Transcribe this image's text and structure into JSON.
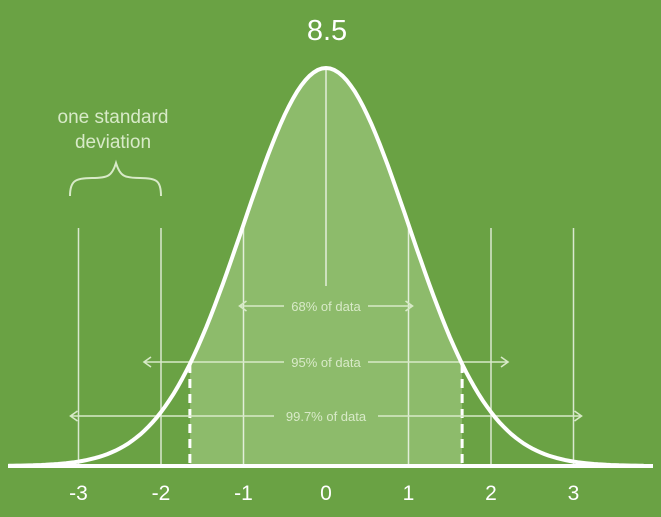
{
  "diagram": {
    "peak_label": "8.5",
    "annotation": {
      "line1": "one standard",
      "line2": "deviation"
    },
    "ticks": [
      "-3",
      "-2",
      "-1",
      "0",
      "1",
      "2",
      "3"
    ],
    "ranges": [
      {
        "label": "68% of data",
        "from": -1,
        "to": 1
      },
      {
        "label": "95% of data",
        "from": -2,
        "to": 2
      },
      {
        "label": "99.7% of data",
        "from": -3,
        "to": 3
      }
    ],
    "shaded_region": {
      "from": -1.65,
      "to": 1.65
    },
    "colors": {
      "background": "#6aa244",
      "curve": "#ffffff",
      "shade": "#a9cf8c"
    }
  }
}
